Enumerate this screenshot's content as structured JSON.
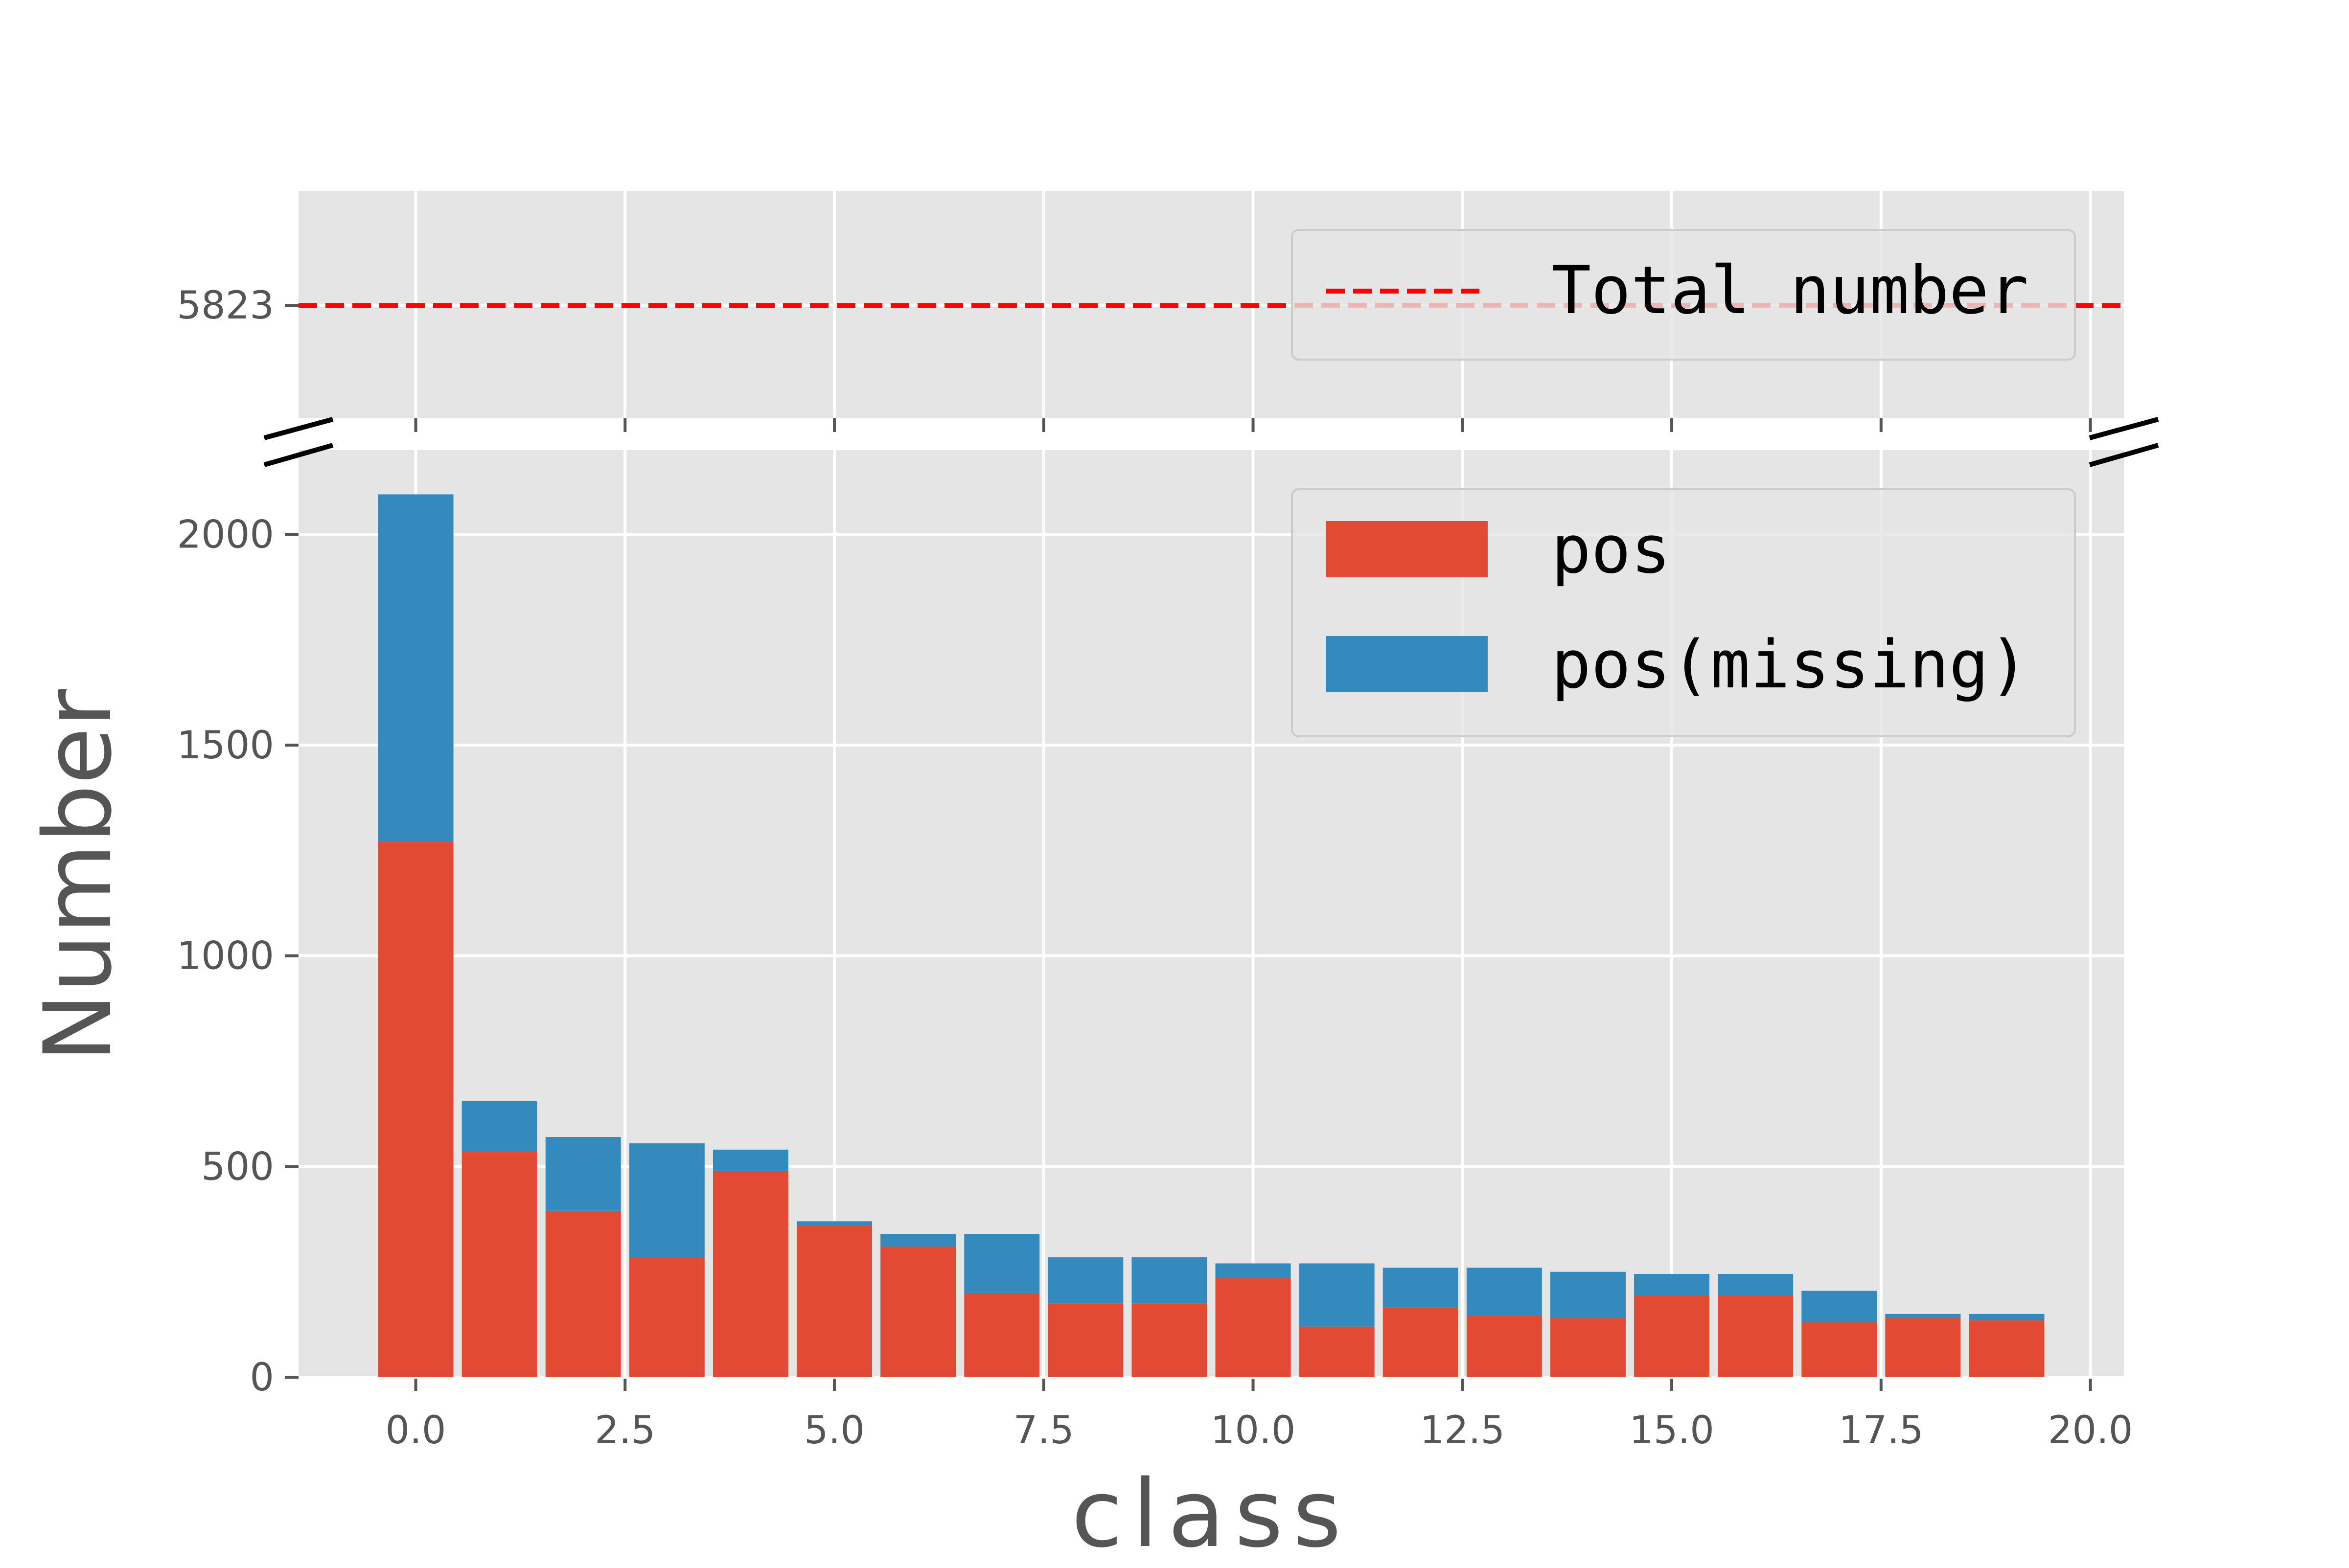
{
  "chart_data": {
    "type": "bar",
    "stacked": true,
    "xlabel": "class",
    "ylabel": "Number",
    "x": [
      0,
      1,
      2,
      3,
      4,
      5,
      6,
      7,
      8,
      9,
      10,
      11,
      12,
      13,
      14,
      15,
      16,
      17,
      18,
      19
    ],
    "xlim": [
      -1.4,
      20.4
    ],
    "xticks": [
      "0.0",
      "2.5",
      "5.0",
      "7.5",
      "10.0",
      "12.5",
      "15.0",
      "17.5",
      "20.0"
    ],
    "ylim_bottom": [
      0,
      2200
    ],
    "ylim_top": [
      5550,
      6100
    ],
    "yticks_bottom": [
      "0",
      "500",
      "1000",
      "1500",
      "2000"
    ],
    "yticks_top": [
      "5823"
    ],
    "series": [
      {
        "name": "pos",
        "color": "#E24A33",
        "values": [
          1270,
          535,
          395,
          285,
          490,
          360,
          310,
          200,
          175,
          175,
          235,
          120,
          165,
          145,
          140,
          195,
          195,
          130,
          140,
          135
        ]
      },
      {
        "name": "pos(missing)",
        "color": "#348ABD",
        "values": [
          825,
          120,
          175,
          270,
          50,
          10,
          30,
          140,
          110,
          110,
          35,
          150,
          95,
          115,
          110,
          50,
          50,
          75,
          10,
          15
        ]
      }
    ],
    "reference_line": {
      "name": "Total number",
      "value": 5823,
      "color": "#FF0000",
      "style": "dashed"
    },
    "legend_top": {
      "placement": "upper right",
      "entries": [
        "Total number"
      ]
    },
    "legend_bottom": {
      "placement": "upper right",
      "entries": [
        "pos",
        "pos(missing)"
      ]
    },
    "background": "#E5E5E5",
    "grid": true,
    "broken_axis": true
  }
}
